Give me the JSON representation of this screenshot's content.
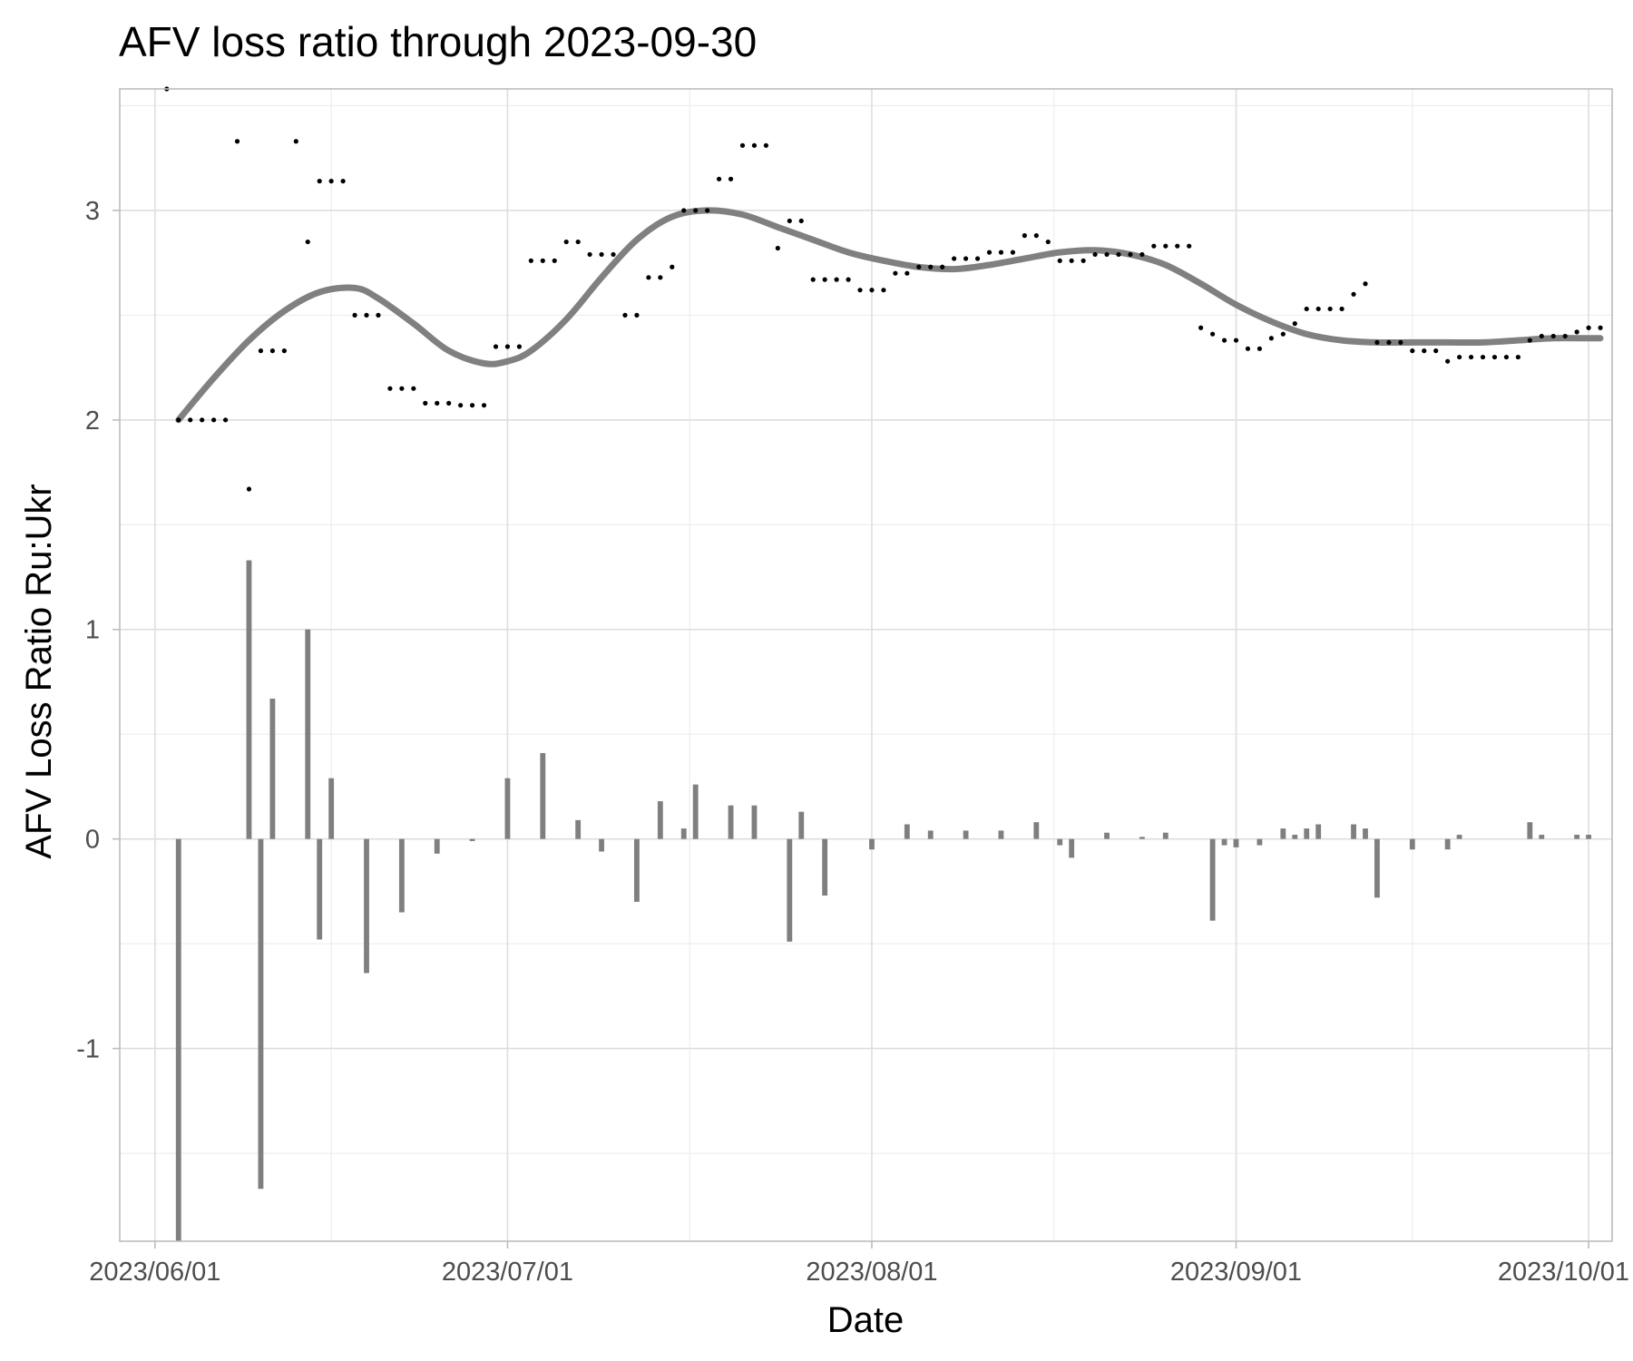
{
  "chart_data": {
    "type": "bar",
    "title": "AFV loss ratio through 2023-09-30",
    "xlabel": "Date",
    "ylabel": "AFV Loss Ratio Ru:Ukr",
    "xlim": [
      "2023-05-29",
      "2023-10-03"
    ],
    "ylim": [
      -1.92,
      3.58
    ],
    "x_ticks": [
      "2023-06-01",
      "2023-07-01",
      "2023-08-01",
      "2023-09-01",
      "2023-10-01"
    ],
    "x_tick_labels": [
      "2023/06/01",
      "2023/07/01",
      "2023/08/01",
      "2023/09/01",
      "2023/10/01"
    ],
    "y_ticks": [
      -1,
      0,
      1,
      2,
      3
    ],
    "y_tick_labels": [
      "-1",
      "0",
      "1",
      "2",
      "3"
    ],
    "grid": true,
    "legend": "none",
    "series": [
      {
        "type": "scatter",
        "color": "#000000",
        "points": [
          [
            "2023-06-02",
            3.58
          ],
          [
            "2023-06-03",
            2.0
          ],
          [
            "2023-06-04",
            2.0
          ],
          [
            "2023-06-05",
            2.0
          ],
          [
            "2023-06-06",
            2.0
          ],
          [
            "2023-06-07",
            2.0
          ],
          [
            "2023-06-08",
            3.33
          ],
          [
            "2023-06-09",
            1.67
          ],
          [
            "2023-06-10",
            2.33
          ],
          [
            "2023-06-11",
            2.33
          ],
          [
            "2023-06-12",
            2.33
          ],
          [
            "2023-06-13",
            3.33
          ],
          [
            "2023-06-14",
            2.85
          ],
          [
            "2023-06-15",
            3.14
          ],
          [
            "2023-06-16",
            3.14
          ],
          [
            "2023-06-17",
            3.14
          ],
          [
            "2023-06-18",
            2.5
          ],
          [
            "2023-06-19",
            2.5
          ],
          [
            "2023-06-20",
            2.5
          ],
          [
            "2023-06-21",
            2.15
          ],
          [
            "2023-06-22",
            2.15
          ],
          [
            "2023-06-23",
            2.15
          ],
          [
            "2023-06-24",
            2.08
          ],
          [
            "2023-06-25",
            2.08
          ],
          [
            "2023-06-26",
            2.08
          ],
          [
            "2023-06-27",
            2.07
          ],
          [
            "2023-06-28",
            2.07
          ],
          [
            "2023-06-29",
            2.07
          ],
          [
            "2023-06-30",
            2.35
          ],
          [
            "2023-07-01",
            2.35
          ],
          [
            "2023-07-02",
            2.35
          ],
          [
            "2023-07-03",
            2.76
          ],
          [
            "2023-07-04",
            2.76
          ],
          [
            "2023-07-05",
            2.76
          ],
          [
            "2023-07-06",
            2.85
          ],
          [
            "2023-07-07",
            2.85
          ],
          [
            "2023-07-08",
            2.79
          ],
          [
            "2023-07-09",
            2.79
          ],
          [
            "2023-07-10",
            2.79
          ],
          [
            "2023-07-11",
            2.5
          ],
          [
            "2023-07-12",
            2.5
          ],
          [
            "2023-07-13",
            2.68
          ],
          [
            "2023-07-14",
            2.68
          ],
          [
            "2023-07-15",
            2.73
          ],
          [
            "2023-07-16",
            3.0
          ],
          [
            "2023-07-17",
            3.0
          ],
          [
            "2023-07-18",
            3.0
          ],
          [
            "2023-07-19",
            3.15
          ],
          [
            "2023-07-20",
            3.15
          ],
          [
            "2023-07-21",
            3.31
          ],
          [
            "2023-07-22",
            3.31
          ],
          [
            "2023-07-23",
            3.31
          ],
          [
            "2023-07-24",
            2.82
          ],
          [
            "2023-07-25",
            2.95
          ],
          [
            "2023-07-26",
            2.95
          ],
          [
            "2023-07-27",
            2.67
          ],
          [
            "2023-07-28",
            2.67
          ],
          [
            "2023-07-29",
            2.67
          ],
          [
            "2023-07-30",
            2.67
          ],
          [
            "2023-07-31",
            2.62
          ],
          [
            "2023-08-01",
            2.62
          ],
          [
            "2023-08-02",
            2.62
          ],
          [
            "2023-08-03",
            2.7
          ],
          [
            "2023-08-04",
            2.7
          ],
          [
            "2023-08-05",
            2.73
          ],
          [
            "2023-08-06",
            2.73
          ],
          [
            "2023-08-07",
            2.73
          ],
          [
            "2023-08-08",
            2.77
          ],
          [
            "2023-08-09",
            2.77
          ],
          [
            "2023-08-10",
            2.77
          ],
          [
            "2023-08-11",
            2.8
          ],
          [
            "2023-08-12",
            2.8
          ],
          [
            "2023-08-13",
            2.8
          ],
          [
            "2023-08-14",
            2.88
          ],
          [
            "2023-08-15",
            2.88
          ],
          [
            "2023-08-16",
            2.85
          ],
          [
            "2023-08-17",
            2.76
          ],
          [
            "2023-08-18",
            2.76
          ],
          [
            "2023-08-19",
            2.76
          ],
          [
            "2023-08-20",
            2.79
          ],
          [
            "2023-08-21",
            2.79
          ],
          [
            "2023-08-22",
            2.79
          ],
          [
            "2023-08-23",
            2.79
          ],
          [
            "2023-08-24",
            2.79
          ],
          [
            "2023-08-25",
            2.83
          ],
          [
            "2023-08-26",
            2.83
          ],
          [
            "2023-08-27",
            2.83
          ],
          [
            "2023-08-28",
            2.83
          ],
          [
            "2023-08-29",
            2.44
          ],
          [
            "2023-08-30",
            2.41
          ],
          [
            "2023-08-31",
            2.38
          ],
          [
            "2023-09-01",
            2.38
          ],
          [
            "2023-09-02",
            2.34
          ],
          [
            "2023-09-03",
            2.34
          ],
          [
            "2023-09-04",
            2.39
          ],
          [
            "2023-09-05",
            2.41
          ],
          [
            "2023-09-06",
            2.46
          ],
          [
            "2023-09-07",
            2.53
          ],
          [
            "2023-09-08",
            2.53
          ],
          [
            "2023-09-09",
            2.53
          ],
          [
            "2023-09-10",
            2.53
          ],
          [
            "2023-09-11",
            2.6
          ],
          [
            "2023-09-12",
            2.65
          ],
          [
            "2023-09-13",
            2.37
          ],
          [
            "2023-09-14",
            2.37
          ],
          [
            "2023-09-15",
            2.37
          ],
          [
            "2023-09-16",
            2.33
          ],
          [
            "2023-09-17",
            2.33
          ],
          [
            "2023-09-18",
            2.33
          ],
          [
            "2023-09-19",
            2.28
          ],
          [
            "2023-09-20",
            2.3
          ],
          [
            "2023-09-21",
            2.3
          ],
          [
            "2023-09-22",
            2.3
          ],
          [
            "2023-09-23",
            2.3
          ],
          [
            "2023-09-24",
            2.3
          ],
          [
            "2023-09-25",
            2.3
          ],
          [
            "2023-09-26",
            2.38
          ],
          [
            "2023-09-27",
            2.4
          ],
          [
            "2023-09-28",
            2.4
          ],
          [
            "2023-09-29",
            2.4
          ],
          [
            "2023-09-30",
            2.42
          ],
          [
            "2023-10-01",
            2.44
          ],
          [
            "2023-10-02",
            2.44
          ]
        ]
      },
      {
        "type": "bar",
        "color": "#7f7f7f",
        "points": [
          [
            "2023-06-03",
            -1.92
          ],
          [
            "2023-06-09",
            1.33
          ],
          [
            "2023-06-10",
            -1.67
          ],
          [
            "2023-06-11",
            0.67
          ],
          [
            "2023-06-14",
            1.0
          ],
          [
            "2023-06-15",
            -0.48
          ],
          [
            "2023-06-16",
            0.29
          ],
          [
            "2023-06-19",
            -0.64
          ],
          [
            "2023-06-22",
            -0.35
          ],
          [
            "2023-06-25",
            -0.07
          ],
          [
            "2023-06-28",
            -0.01
          ],
          [
            "2023-07-01",
            0.29
          ],
          [
            "2023-07-04",
            0.41
          ],
          [
            "2023-07-07",
            0.09
          ],
          [
            "2023-07-09",
            -0.06
          ],
          [
            "2023-07-12",
            -0.3
          ],
          [
            "2023-07-14",
            0.18
          ],
          [
            "2023-07-16",
            0.05
          ],
          [
            "2023-07-17",
            0.26
          ],
          [
            "2023-07-20",
            0.16
          ],
          [
            "2023-07-22",
            0.16
          ],
          [
            "2023-07-25",
            -0.49
          ],
          [
            "2023-07-26",
            0.13
          ],
          [
            "2023-07-28",
            -0.27
          ],
          [
            "2023-08-01",
            -0.05
          ],
          [
            "2023-08-04",
            0.07
          ],
          [
            "2023-08-06",
            0.04
          ],
          [
            "2023-08-09",
            0.04
          ],
          [
            "2023-08-12",
            0.04
          ],
          [
            "2023-08-15",
            0.08
          ],
          [
            "2023-08-17",
            -0.03
          ],
          [
            "2023-08-18",
            -0.09
          ],
          [
            "2023-08-21",
            0.03
          ],
          [
            "2023-08-24",
            0.01
          ],
          [
            "2023-08-26",
            0.03
          ],
          [
            "2023-08-30",
            -0.39
          ],
          [
            "2023-08-31",
            -0.03
          ],
          [
            "2023-09-01",
            -0.04
          ],
          [
            "2023-09-03",
            -0.03
          ],
          [
            "2023-09-05",
            0.05
          ],
          [
            "2023-09-06",
            0.02
          ],
          [
            "2023-09-07",
            0.05
          ],
          [
            "2023-09-08",
            0.07
          ],
          [
            "2023-09-11",
            0.07
          ],
          [
            "2023-09-12",
            0.05
          ],
          [
            "2023-09-13",
            -0.28
          ],
          [
            "2023-09-16",
            -0.05
          ],
          [
            "2023-09-19",
            -0.05
          ],
          [
            "2023-09-20",
            0.02
          ],
          [
            "2023-09-26",
            0.08
          ],
          [
            "2023-09-27",
            0.02
          ],
          [
            "2023-09-30",
            0.02
          ],
          [
            "2023-10-01",
            0.02
          ]
        ]
      },
      {
        "type": "line",
        "style": "smooth",
        "color": "#808080",
        "points": [
          [
            "2023-06-03",
            2.0
          ],
          [
            "2023-06-06",
            2.2
          ],
          [
            "2023-06-09",
            2.38
          ],
          [
            "2023-06-12",
            2.52
          ],
          [
            "2023-06-15",
            2.61
          ],
          [
            "2023-06-18",
            2.63
          ],
          [
            "2023-06-20",
            2.58
          ],
          [
            "2023-06-23",
            2.46
          ],
          [
            "2023-06-26",
            2.33
          ],
          [
            "2023-06-29",
            2.27
          ],
          [
            "2023-07-01",
            2.28
          ],
          [
            "2023-07-03",
            2.33
          ],
          [
            "2023-07-06",
            2.48
          ],
          [
            "2023-07-09",
            2.68
          ],
          [
            "2023-07-12",
            2.86
          ],
          [
            "2023-07-15",
            2.97
          ],
          [
            "2023-07-18",
            3.0
          ],
          [
            "2023-07-21",
            2.98
          ],
          [
            "2023-07-24",
            2.92
          ],
          [
            "2023-07-27",
            2.86
          ],
          [
            "2023-07-30",
            2.8
          ],
          [
            "2023-08-02",
            2.76
          ],
          [
            "2023-08-05",
            2.73
          ],
          [
            "2023-08-08",
            2.72
          ],
          [
            "2023-08-11",
            2.74
          ],
          [
            "2023-08-14",
            2.77
          ],
          [
            "2023-08-17",
            2.8
          ],
          [
            "2023-08-20",
            2.81
          ],
          [
            "2023-08-23",
            2.79
          ],
          [
            "2023-08-26",
            2.74
          ],
          [
            "2023-08-29",
            2.65
          ],
          [
            "2023-09-01",
            2.55
          ],
          [
            "2023-09-04",
            2.47
          ],
          [
            "2023-09-07",
            2.41
          ],
          [
            "2023-09-10",
            2.38
          ],
          [
            "2023-09-13",
            2.37
          ],
          [
            "2023-09-16",
            2.37
          ],
          [
            "2023-09-19",
            2.37
          ],
          [
            "2023-09-22",
            2.37
          ],
          [
            "2023-09-25",
            2.38
          ],
          [
            "2023-09-28",
            2.39
          ],
          [
            "2023-10-01",
            2.39
          ],
          [
            "2023-10-02",
            2.39
          ]
        ]
      }
    ]
  }
}
